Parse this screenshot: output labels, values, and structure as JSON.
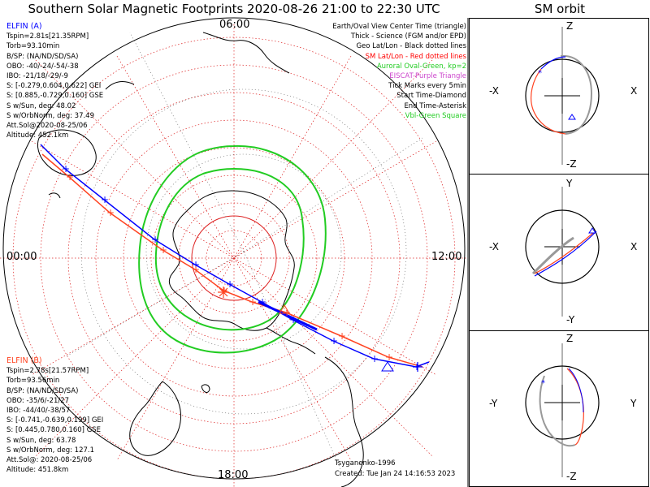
{
  "title": "Southern Solar Magnetic Footprints 2020-08-26 21:00 to 22:30 UTC",
  "orbit_title": "SM orbit",
  "map": {
    "time_labels": {
      "top": "06:00",
      "left": "00:00",
      "right": "12:00",
      "bottom": "18:00"
    },
    "colors": {
      "elfin_a": "#0000ff",
      "elfin_b": "#ff4422",
      "auroral_oval": "#22cc22",
      "grid": "#dd2222",
      "coast": "#000000"
    },
    "auroral_oval_kp": 2
  },
  "elfin_a": {
    "name": "ELFIN (A)",
    "lines": [
      "Tspin=2.81s[21.35RPM]",
      "Torb=93.10min",
      "B/SP: (NA/ND/SD/SA)",
      "OBO: -40/-24/-54/-38",
      "IBO: -21/18/-29/-9",
      "S: [-0.279,0.604,0.622] GEI",
      "S: [0.885,-0.729,0.160] GSE",
      "S w/Sun, deg: 48.02",
      "S w/OrbNorm, deg: 37.49",
      "Att.Sol@2020-08-25/06",
      "Altitude: 452.1km"
    ]
  },
  "elfin_b": {
    "name": "ELFIN (B)",
    "lines": [
      "Tspin=2.78s[21.57RPM]",
      "Torb=93.56min",
      "B/SP: (NA/ND/SD/SA)",
      "OBO: -35/6/-21/27",
      "IBO: -44/40/-38/57",
      "S: [-0.741,-0.639,0.199] GEI",
      "S: [0.445,0.780,0.160] GSE",
      "S w/Sun, deg: 63.78",
      "S w/OrbNorm, deg: 127.1",
      "Att.Sol@: 2020-08-25/06",
      "Altitude: 451.8km"
    ]
  },
  "legend": [
    {
      "text": "Earth/Oval View Center Time (triangle)",
      "color": "#000000"
    },
    {
      "text": "Thick - Science (FGM and/or EPD)",
      "color": "#000000"
    },
    {
      "text": "Geo Lat/Lon - Black dotted lines",
      "color": "#000000"
    },
    {
      "text": "SM Lat/Lon - Red dotted lines",
      "color": "#ff0000"
    },
    {
      "text": "Auroral Oval-Green, kp=2",
      "color": "#22cc22"
    },
    {
      "text": "EISCAT-Purple Triangle",
      "color": "#cc44cc"
    },
    {
      "text": "Tick Marks every 5min",
      "color": "#000000"
    },
    {
      "text": "Start Time-Diamond",
      "color": "#000000"
    },
    {
      "text": "End Time-Asterisk",
      "color": "#000000"
    },
    {
      "text": "Vbl-Green Square",
      "color": "#22cc22"
    }
  ],
  "credit": {
    "line1": "Tsyganenko-1996",
    "line2": "Created: Tue Jan 24 14:16:53 2023"
  },
  "panels": [
    {
      "name": "xz",
      "top": "Z",
      "bottom": "-Z",
      "left": "-X",
      "right": "X"
    },
    {
      "name": "xy",
      "top": "Y",
      "bottom": "-Y",
      "left": "-X",
      "right": "X"
    },
    {
      "name": "yz",
      "top": "Z",
      "bottom": "-Z",
      "left": "-Y",
      "right": "Y"
    }
  ]
}
